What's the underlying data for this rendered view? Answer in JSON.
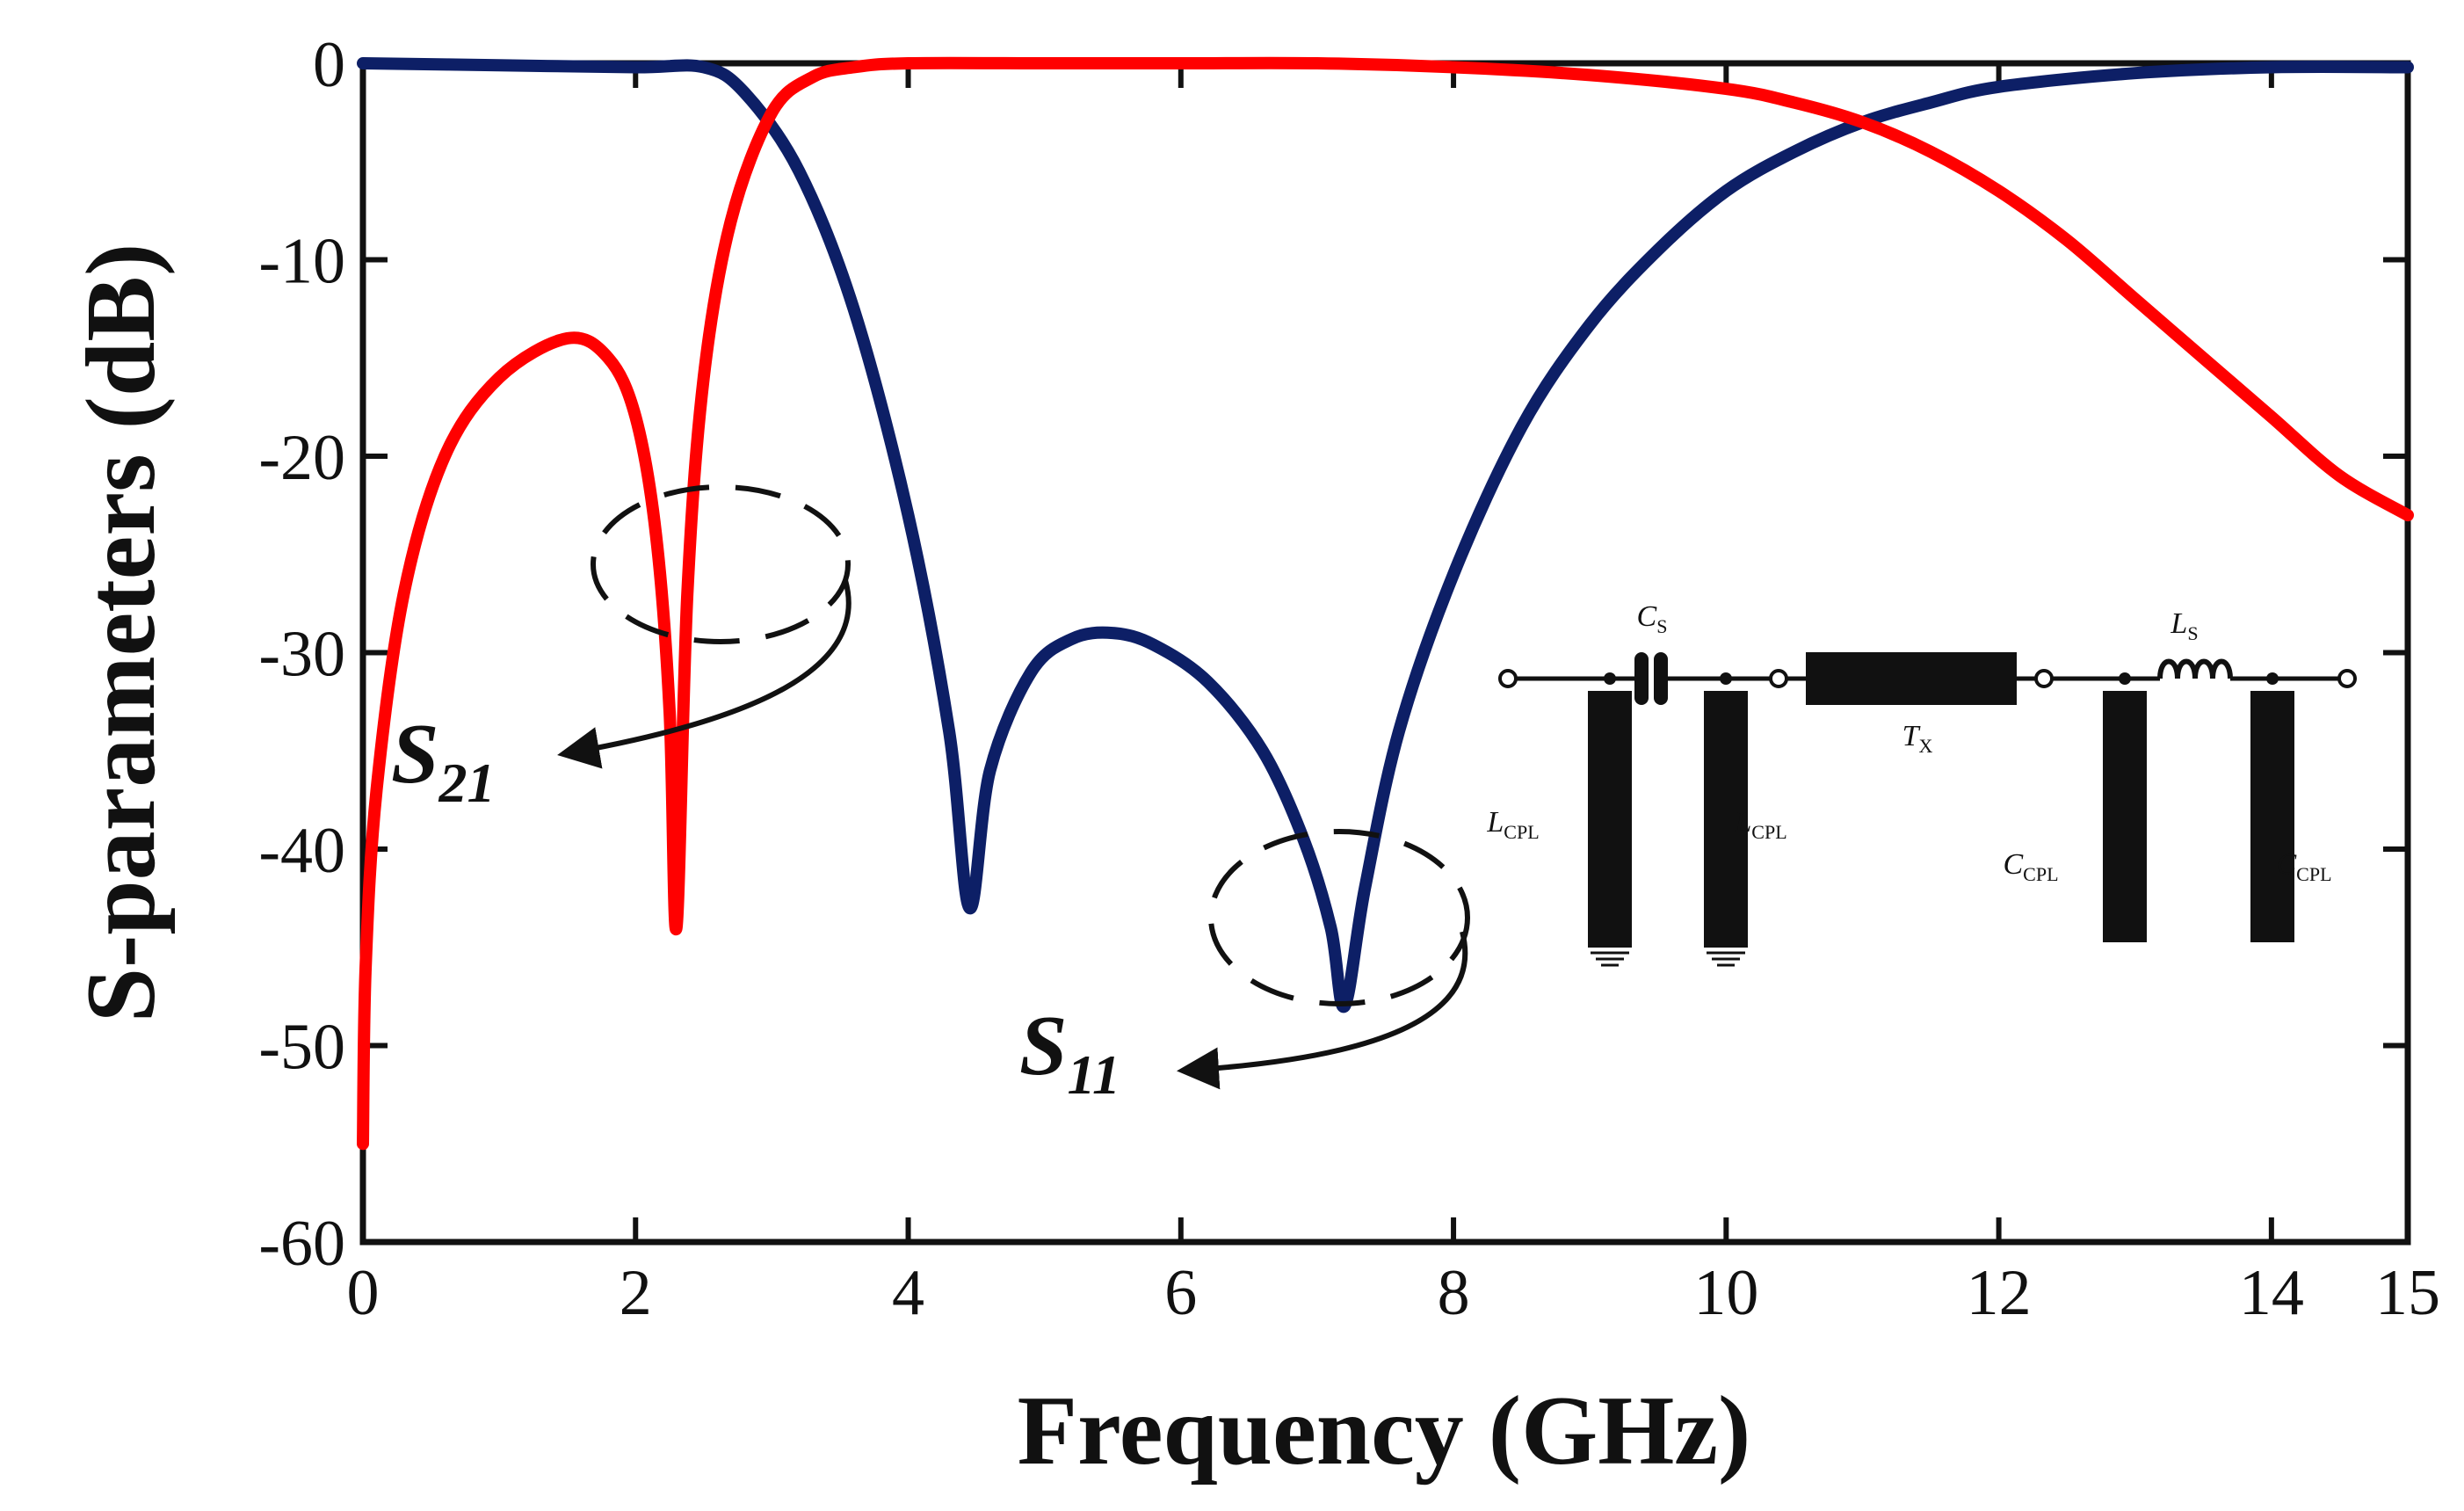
{
  "chart_data": {
    "type": "line",
    "xlabel": "Frequency (GHz)",
    "ylabel": "S-parameters (dB)",
    "xlim": [
      0,
      15
    ],
    "ylim": [
      -60,
      0
    ],
    "xticks": [
      0,
      2,
      4,
      6,
      8,
      10,
      12,
      14,
      15
    ],
    "yticks": [
      0,
      -10,
      -20,
      -30,
      -40,
      -50,
      -60
    ],
    "grid": false,
    "series": [
      {
        "id": "S11",
        "color": "#0d1f66",
        "x": [
          0,
          1,
          2,
          2.5,
          2.8,
          3.2,
          3.6,
          4.0,
          4.3,
          4.45,
          4.6,
          4.9,
          5.2,
          5.5,
          5.8,
          6.2,
          6.6,
          6.9,
          7.1,
          7.2,
          7.35,
          7.6,
          8.0,
          8.5,
          9.0,
          9.5,
          10.0,
          10.5,
          11.0,
          11.5,
          12.0,
          13.0,
          14.0,
          15.0
        ],
        "y": [
          0,
          -0.1,
          -0.2,
          -0.2,
          -1.5,
          -5.5,
          -12.5,
          -23,
          -34,
          -43,
          -36,
          -31,
          -29.3,
          -29,
          -29.6,
          -31.5,
          -35,
          -39.5,
          -44,
          -48,
          -42,
          -34,
          -26,
          -18.5,
          -13.3,
          -9.5,
          -6.5,
          -4.5,
          -3,
          -2,
          -1.2,
          -0.5,
          -0.2,
          -0.2
        ]
      },
      {
        "id": "S21",
        "color": "#ff0000",
        "x": [
          0,
          0.02,
          0.1,
          0.3,
          0.6,
          1.0,
          1.5,
          1.8,
          2.0,
          2.15,
          2.25,
          2.3,
          2.38,
          2.5,
          2.7,
          3.0,
          3.3,
          3.6,
          4.0,
          5.0,
          6.0,
          7.0,
          8.0,
          9.0,
          10.0,
          10.5,
          11.0,
          11.5,
          12.0,
          12.5,
          13.0,
          13.5,
          14.0,
          14.5,
          15.0
        ],
        "y": [
          -55,
          -46,
          -37,
          -27,
          -20,
          -16,
          -14,
          -15,
          -18,
          -24,
          -33,
          -44,
          -27,
          -16,
          -8,
          -2.5,
          -0.7,
          -0.2,
          0,
          0,
          0,
          0,
          -0.2,
          -0.6,
          -1.3,
          -2,
          -3,
          -4.5,
          -6.5,
          -9,
          -12,
          -15,
          -18,
          -21,
          -23
        ]
      }
    ],
    "annotations": [
      {
        "id": "S21",
        "main": "S",
        "sub": "21"
      },
      {
        "id": "S11",
        "main": "S",
        "sub": "11"
      }
    ],
    "inset_circuit": {
      "labels": [
        {
          "main": "C",
          "sub": "S"
        },
        {
          "main": "T",
          "sub": "X"
        },
        {
          "main": "L",
          "sub": "S"
        },
        {
          "main": "L",
          "sub": "CPL"
        },
        {
          "main": "L",
          "sub": "CPL"
        },
        {
          "main": "C",
          "sub": "CPL"
        },
        {
          "main": "C",
          "sub": "CPL"
        }
      ]
    }
  }
}
